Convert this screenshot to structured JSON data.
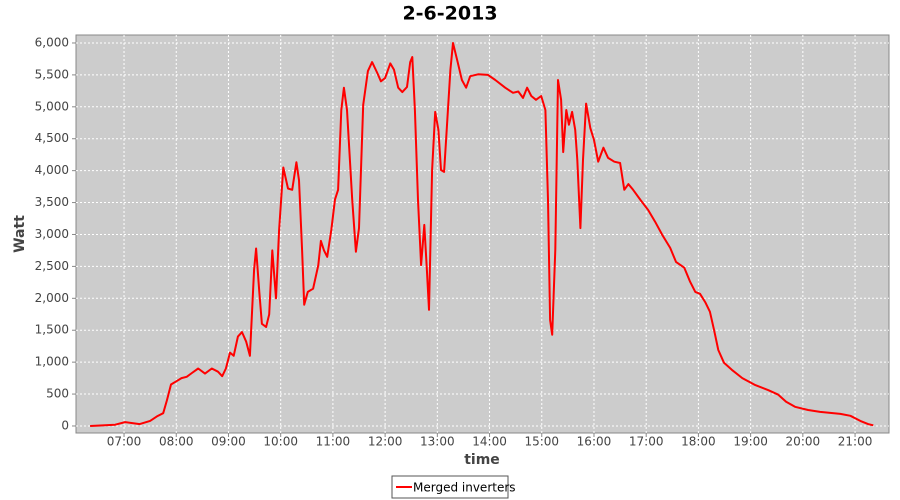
{
  "chart_data": {
    "type": "line",
    "title": "2-6-2013",
    "x_label": "time",
    "y_label": "Watt",
    "x": [
      6.35,
      6.83,
      7.02,
      7.3,
      7.5,
      7.63,
      7.75,
      7.82,
      7.9,
      8.0,
      8.1,
      8.2,
      8.3,
      8.42,
      8.55,
      8.68,
      8.8,
      8.88,
      8.95,
      9.03,
      9.1,
      9.18,
      9.26,
      9.34,
      9.41,
      9.49,
      9.53,
      9.59,
      9.64,
      9.72,
      9.78,
      9.84,
      9.91,
      9.97,
      10.05,
      10.14,
      10.22,
      10.3,
      10.35,
      10.41,
      10.45,
      10.52,
      10.62,
      10.72,
      10.77,
      10.83,
      10.89,
      10.97,
      11.04,
      11.1,
      11.16,
      11.21,
      11.27,
      11.37,
      11.44,
      11.5,
      11.58,
      11.67,
      11.75,
      11.85,
      11.92,
      12.0,
      12.1,
      12.17,
      12.25,
      12.33,
      12.42,
      12.48,
      12.52,
      12.57,
      12.63,
      12.69,
      12.75,
      12.8,
      12.84,
      12.9,
      12.96,
      13.02,
      13.07,
      13.13,
      13.19,
      13.25,
      13.3,
      13.38,
      13.47,
      13.55,
      13.63,
      13.78,
      13.97,
      14.11,
      14.3,
      14.45,
      14.55,
      14.64,
      14.72,
      14.8,
      14.89,
      14.99,
      15.07,
      15.12,
      15.16,
      15.2,
      15.26,
      15.31,
      15.37,
      15.41,
      15.47,
      15.52,
      15.58,
      15.64,
      15.68,
      15.74,
      15.79,
      15.85,
      15.93,
      16.0,
      16.08,
      16.18,
      16.27,
      16.39,
      16.5,
      16.58,
      16.66,
      16.75,
      16.89,
      17.04,
      17.17,
      17.31,
      17.46,
      17.57,
      17.73,
      17.84,
      17.94,
      18.03,
      18.13,
      18.22,
      18.3,
      18.38,
      18.49,
      18.64,
      18.84,
      19.09,
      19.34,
      19.53,
      19.68,
      19.85,
      20.1,
      20.33,
      20.72,
      20.91,
      21.1,
      21.25,
      21.35
    ],
    "series": [
      {
        "name": "Merged inverters",
        "color": "#ff0000",
        "values": [
          0,
          20,
          60,
          30,
          80,
          150,
          200,
          400,
          650,
          700,
          750,
          770,
          830,
          900,
          820,
          900,
          850,
          780,
          900,
          1150,
          1100,
          1400,
          1470,
          1320,
          1100,
          2450,
          2780,
          2100,
          1600,
          1550,
          1750,
          2750,
          2000,
          3070,
          4050,
          3720,
          3700,
          4130,
          3850,
          2750,
          1900,
          2100,
          2150,
          2520,
          2900,
          2750,
          2650,
          3070,
          3550,
          3700,
          4950,
          5300,
          4950,
          3550,
          2730,
          3100,
          5030,
          5560,
          5700,
          5530,
          5400,
          5450,
          5680,
          5580,
          5300,
          5230,
          5310,
          5700,
          5780,
          4950,
          3540,
          2520,
          3150,
          2440,
          1820,
          4010,
          4920,
          4640,
          4010,
          3980,
          4790,
          5580,
          6000,
          5730,
          5420,
          5300,
          5480,
          5510,
          5500,
          5420,
          5300,
          5220,
          5240,
          5140,
          5300,
          5170,
          5110,
          5170,
          4950,
          3540,
          1660,
          1430,
          2760,
          5420,
          5110,
          4290,
          4950,
          4720,
          4920,
          4640,
          4170,
          3100,
          4170,
          5050,
          4670,
          4480,
          4140,
          4360,
          4200,
          4140,
          4120,
          3700,
          3790,
          3700,
          3540,
          3380,
          3200,
          2990,
          2790,
          2570,
          2480,
          2260,
          2100,
          2070,
          1940,
          1790,
          1500,
          1190,
          990,
          880,
          750,
          640,
          560,
          490,
          380,
          300,
          250,
          220,
          190,
          160,
          80,
          30,
          10
        ]
      }
    ],
    "xlim": [
      6.08,
      21.65
    ],
    "xticks": [
      {
        "value": 7,
        "label": "07:00"
      },
      {
        "value": 8,
        "label": "08:00"
      },
      {
        "value": 9,
        "label": "09:00"
      },
      {
        "value": 10,
        "label": "10:00"
      },
      {
        "value": 11,
        "label": "11:00"
      },
      {
        "value": 12,
        "label": "12:00"
      },
      {
        "value": 13,
        "label": "13:00"
      },
      {
        "value": 14,
        "label": "14:00"
      },
      {
        "value": 15,
        "label": "15:00"
      },
      {
        "value": 16,
        "label": "16:00"
      },
      {
        "value": 17,
        "label": "17:00"
      },
      {
        "value": 18,
        "label": "18:00"
      },
      {
        "value": 19,
        "label": "19:00"
      },
      {
        "value": 20,
        "label": "20:00"
      },
      {
        "value": 21,
        "label": "21:00"
      }
    ],
    "ylim": [
      -110,
      6125
    ],
    "yticks": [
      0,
      500,
      {
        "value": 1000,
        "label": "1,000"
      },
      {
        "value": 1500,
        "label": "1,500"
      },
      {
        "value": 2000,
        "label": "2,000"
      },
      {
        "value": 2500,
        "label": "2,500"
      },
      {
        "value": 3000,
        "label": "3,000"
      },
      {
        "value": 3500,
        "label": "3,500"
      },
      {
        "value": 4000,
        "label": "4,000"
      },
      {
        "value": 4500,
        "label": "4,500"
      },
      {
        "value": 5000,
        "label": "5,000"
      },
      {
        "value": 5500,
        "label": "5,500"
      },
      {
        "value": 6000,
        "label": "6,000"
      }
    ],
    "grid": true,
    "legend": "bottom"
  }
}
